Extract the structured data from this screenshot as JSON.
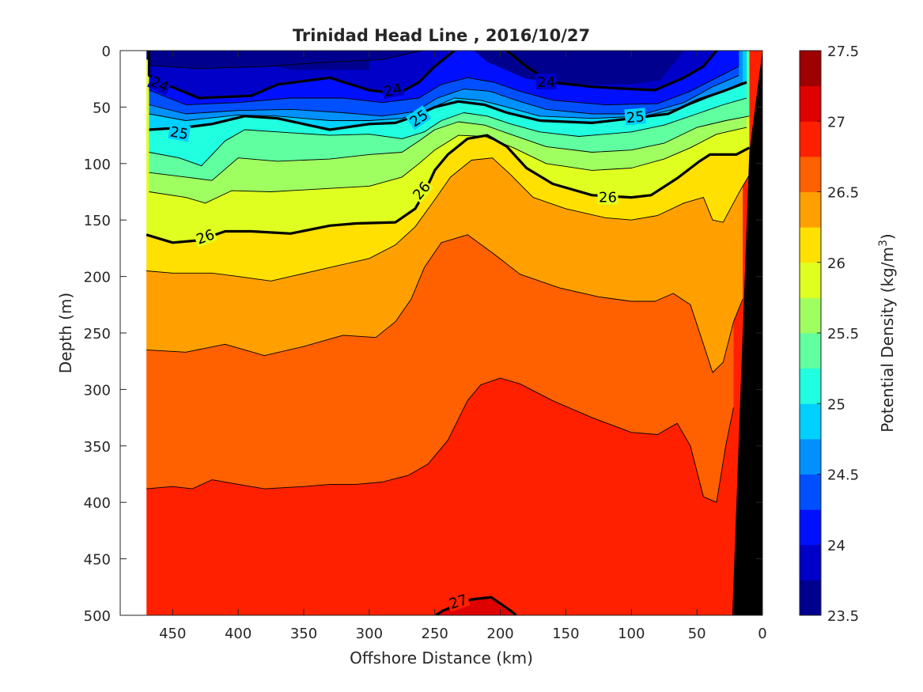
{
  "chart_data": {
    "type": "contour",
    "title": "Trinidad Head Line , 2016/10/27",
    "xlabel": "Offshore Distance (km)",
    "ylabel": "Depth (m)",
    "colorbar_label_main": "Potential Density (kg/m",
    "colorbar_label_sup": "3",
    "colorbar_label_end": ")",
    "xlim": [
      490,
      0
    ],
    "xdir": "reverse",
    "ylim": [
      0,
      500
    ],
    "ydir": "reverse",
    "x_ticks": [
      450,
      400,
      350,
      300,
      250,
      200,
      150,
      100,
      50,
      0
    ],
    "y_ticks": [
      0,
      50,
      100,
      150,
      200,
      250,
      300,
      350,
      400,
      450,
      500
    ],
    "grid": false,
    "colorbar": {
      "range": [
        23.5,
        27.5
      ],
      "step": 0.25,
      "ticks": [
        23.5,
        24,
        24.5,
        25,
        25.5,
        26,
        26.5,
        27,
        27.5
      ],
      "colors": [
        "#00008f",
        "#0000c8",
        "#0010ff",
        "#0050ff",
        "#0090ff",
        "#00d0ff",
        "#20ffdf",
        "#60ff9f",
        "#9fff60",
        "#dfff20",
        "#ffe000",
        "#ffa000",
        "#ff6000",
        "#ff2000",
        "#df0000",
        "#9f0000"
      ]
    },
    "contour_labels": [
      {
        "text": "24",
        "x": 460,
        "y": 30,
        "rotate": 25
      },
      {
        "text": "24",
        "x": 282,
        "y": 35,
        "rotate": -12
      },
      {
        "text": "24",
        "x": 165,
        "y": 28,
        "rotate": 0
      },
      {
        "text": "25",
        "x": 445,
        "y": 73,
        "rotate": 10
      },
      {
        "text": "25",
        "x": 262,
        "y": 60,
        "rotate": -35
      },
      {
        "text": "25",
        "x": 97,
        "y": 59,
        "rotate": -5
      },
      {
        "text": "26",
        "x": 425,
        "y": 165,
        "rotate": -20
      },
      {
        "text": "26",
        "x": 260,
        "y": 124,
        "rotate": -50
      },
      {
        "text": "26",
        "x": 118,
        "y": 130,
        "rotate": 0
      },
      {
        "text": "27",
        "x": 232,
        "y": 488,
        "rotate": -18
      }
    ],
    "isolines": [
      {
        "level": 23.75,
        "points": [
          [
            468,
            0
          ],
          [
            468,
            13
          ],
          [
            430,
            16
          ],
          [
            380,
            14
          ],
          [
            330,
            10
          ],
          [
            290,
            8
          ],
          [
            260,
            0
          ]
        ]
      },
      {
        "level": 24.0,
        "points": [
          [
            468,
            0
          ],
          [
            468,
            22
          ],
          [
            455,
            30
          ],
          [
            430,
            42
          ],
          [
            390,
            40
          ],
          [
            370,
            30
          ],
          [
            330,
            24
          ],
          [
            300,
            35
          ],
          [
            278,
            38
          ],
          [
            262,
            28
          ],
          [
            250,
            14
          ],
          [
            235,
            0
          ]
        ]
      },
      {
        "level": 24.0,
        "points": [
          [
            195,
            0
          ],
          [
            180,
            14
          ],
          [
            162,
            28
          ],
          [
            130,
            32
          ],
          [
            100,
            34
          ],
          [
            82,
            35
          ],
          [
            60,
            24
          ],
          [
            45,
            14
          ],
          [
            35,
            0
          ]
        ]
      },
      {
        "level": 24.25,
        "points": [
          [
            468,
            35
          ],
          [
            440,
            48
          ],
          [
            400,
            46
          ],
          [
            360,
            42
          ],
          [
            320,
            42
          ],
          [
            290,
            46
          ],
          [
            262,
            42
          ],
          [
            245,
            30
          ],
          [
            225,
            24
          ],
          [
            205,
            28
          ],
          [
            185,
            36
          ],
          [
            160,
            44
          ],
          [
            120,
            48
          ],
          [
            80,
            47
          ],
          [
            55,
            36
          ],
          [
            35,
            24
          ],
          [
            18,
            14
          ]
        ]
      },
      {
        "level": 24.5,
        "points": [
          [
            468,
            48
          ],
          [
            440,
            56
          ],
          [
            400,
            53
          ],
          [
            360,
            52
          ],
          [
            320,
            55
          ],
          [
            290,
            58
          ],
          [
            265,
            54
          ],
          [
            248,
            42
          ],
          [
            228,
            34
          ],
          [
            208,
            36
          ],
          [
            188,
            44
          ],
          [
            165,
            52
          ],
          [
            130,
            56
          ],
          [
            90,
            56
          ],
          [
            60,
            46
          ],
          [
            38,
            32
          ],
          [
            18,
            22
          ]
        ]
      },
      {
        "level": 24.75,
        "points": [
          [
            468,
            56
          ],
          [
            440,
            62
          ],
          [
            400,
            57
          ],
          [
            370,
            58
          ],
          [
            330,
            62
          ],
          [
            300,
            62
          ],
          [
            275,
            60
          ],
          [
            255,
            52
          ],
          [
            235,
            42
          ],
          [
            215,
            44
          ],
          [
            195,
            50
          ],
          [
            170,
            58
          ],
          [
            130,
            60
          ],
          [
            90,
            58
          ],
          [
            60,
            50
          ],
          [
            38,
            40
          ],
          [
            15,
            28
          ]
        ]
      },
      {
        "level": 25.0,
        "points": [
          [
            468,
            70
          ],
          [
            440,
            68
          ],
          [
            420,
            65
          ],
          [
            395,
            58
          ],
          [
            370,
            60
          ],
          [
            330,
            70
          ],
          [
            300,
            65
          ],
          [
            280,
            64
          ],
          [
            265,
            58
          ],
          [
            250,
            50
          ],
          [
            232,
            45
          ],
          [
            212,
            48
          ],
          [
            195,
            55
          ],
          [
            170,
            62
          ],
          [
            130,
            64
          ],
          [
            100,
            60
          ],
          [
            72,
            56
          ],
          [
            50,
            44
          ],
          [
            30,
            36
          ],
          [
            12,
            28
          ]
        ]
      },
      {
        "level": 25.25,
        "points": [
          [
            468,
            90
          ],
          [
            445,
            95
          ],
          [
            428,
            102
          ],
          [
            410,
            80
          ],
          [
            395,
            70
          ],
          [
            370,
            72
          ],
          [
            330,
            75
          ],
          [
            300,
            74
          ],
          [
            275,
            78
          ],
          [
            258,
            72
          ],
          [
            245,
            62
          ],
          [
            228,
            55
          ],
          [
            210,
            58
          ],
          [
            192,
            65
          ],
          [
            170,
            72
          ],
          [
            140,
            76
          ],
          [
            100,
            72
          ],
          [
            75,
            66
          ],
          [
            50,
            56
          ],
          [
            30,
            48
          ],
          [
            12,
            42
          ]
        ]
      },
      {
        "level": 25.5,
        "points": [
          [
            468,
            108
          ],
          [
            440,
            112
          ],
          [
            420,
            115
          ],
          [
            400,
            95
          ],
          [
            370,
            98
          ],
          [
            330,
            96
          ],
          [
            300,
            92
          ],
          [
            275,
            90
          ],
          [
            262,
            80
          ],
          [
            250,
            70
          ],
          [
            232,
            63
          ],
          [
            212,
            66
          ],
          [
            190,
            75
          ],
          [
            165,
            85
          ],
          [
            130,
            90
          ],
          [
            100,
            88
          ],
          [
            75,
            82
          ],
          [
            50,
            68
          ],
          [
            28,
            62
          ],
          [
            10,
            58
          ]
        ]
      },
      {
        "level": 25.75,
        "points": [
          [
            468,
            125
          ],
          [
            440,
            130
          ],
          [
            425,
            135
          ],
          [
            405,
            124
          ],
          [
            375,
            125
          ],
          [
            330,
            122
          ],
          [
            300,
            120
          ],
          [
            275,
            112
          ],
          [
            262,
            100
          ],
          [
            250,
            88
          ],
          [
            232,
            75
          ],
          [
            212,
            76
          ],
          [
            190,
            86
          ],
          [
            165,
            100
          ],
          [
            130,
            106
          ],
          [
            100,
            104
          ],
          [
            75,
            96
          ],
          [
            55,
            86
          ],
          [
            35,
            74
          ],
          [
            12,
            68
          ]
        ]
      },
      {
        "level": 26.0,
        "points": [
          [
            470,
            163
          ],
          [
            450,
            170
          ],
          [
            430,
            168
          ],
          [
            410,
            160
          ],
          [
            390,
            160
          ],
          [
            360,
            162
          ],
          [
            330,
            155
          ],
          [
            310,
            153
          ],
          [
            280,
            152
          ],
          [
            265,
            140
          ],
          [
            258,
            126
          ],
          [
            250,
            106
          ],
          [
            240,
            92
          ],
          [
            225,
            78
          ],
          [
            210,
            75
          ],
          [
            195,
            85
          ],
          [
            180,
            104
          ],
          [
            160,
            118
          ],
          [
            130,
            128
          ],
          [
            100,
            130
          ],
          [
            85,
            128
          ],
          [
            65,
            113
          ],
          [
            48,
            98
          ],
          [
            40,
            92
          ],
          [
            20,
            92
          ],
          [
            10,
            86
          ]
        ]
      },
      {
        "level": 26.25,
        "points": [
          [
            470,
            195
          ],
          [
            450,
            197
          ],
          [
            420,
            197
          ],
          [
            400,
            200
          ],
          [
            375,
            204
          ],
          [
            360,
            200
          ],
          [
            330,
            192
          ],
          [
            300,
            184
          ],
          [
            280,
            172
          ],
          [
            265,
            156
          ],
          [
            250,
            132
          ],
          [
            238,
            112
          ],
          [
            222,
            97
          ],
          [
            206,
            95
          ],
          [
            192,
            110
          ],
          [
            175,
            130
          ],
          [
            150,
            140
          ],
          [
            120,
            148
          ],
          [
            100,
            150
          ],
          [
            80,
            146
          ],
          [
            60,
            135
          ],
          [
            45,
            130
          ],
          [
            38,
            150
          ],
          [
            30,
            152
          ],
          [
            18,
            126
          ],
          [
            10,
            110
          ]
        ]
      },
      {
        "level": 26.5,
        "points": [
          [
            470,
            265
          ],
          [
            440,
            267
          ],
          [
            410,
            260
          ],
          [
            380,
            270
          ],
          [
            350,
            262
          ],
          [
            320,
            252
          ],
          [
            295,
            254
          ],
          [
            280,
            240
          ],
          [
            268,
            220
          ],
          [
            258,
            192
          ],
          [
            245,
            170
          ],
          [
            225,
            163
          ],
          [
            205,
            180
          ],
          [
            185,
            198
          ],
          [
            155,
            210
          ],
          [
            125,
            218
          ],
          [
            100,
            222
          ],
          [
            82,
            222
          ],
          [
            68,
            215
          ],
          [
            55,
            225
          ],
          [
            45,
            260
          ],
          [
            38,
            285
          ],
          [
            30,
            276
          ],
          [
            22,
            240
          ],
          [
            15,
            220
          ]
        ]
      },
      {
        "level": 26.75,
        "points": [
          [
            470,
            388
          ],
          [
            450,
            386
          ],
          [
            435,
            388
          ],
          [
            420,
            380
          ],
          [
            400,
            384
          ],
          [
            380,
            388
          ],
          [
            350,
            386
          ],
          [
            330,
            384
          ],
          [
            310,
            384
          ],
          [
            290,
            382
          ],
          [
            270,
            376
          ],
          [
            255,
            366
          ],
          [
            240,
            345
          ],
          [
            225,
            310
          ],
          [
            215,
            296
          ],
          [
            200,
            290
          ],
          [
            185,
            295
          ],
          [
            160,
            310
          ],
          [
            130,
            325
          ],
          [
            100,
            338
          ],
          [
            80,
            340
          ],
          [
            65,
            330
          ],
          [
            55,
            350
          ],
          [
            45,
            395
          ],
          [
            35,
            400
          ],
          [
            28,
            350
          ],
          [
            22,
            316
          ]
        ]
      },
      {
        "level": 27.0,
        "points": [
          [
            249,
            500
          ],
          [
            244,
            496
          ],
          [
            222,
            486
          ],
          [
            207,
            484
          ],
          [
            192,
            496
          ],
          [
            188,
            500
          ]
        ]
      }
    ],
    "bands": [
      {
        "level_index": 0,
        "points": [
          [
            300,
            0
          ],
          [
            300,
            17
          ],
          [
            360,
            17
          ],
          [
            385,
            10
          ],
          [
            420,
            12
          ],
          [
            470,
            8
          ],
          [
            470,
            0
          ]
        ]
      },
      {
        "level_index": 0,
        "points": [
          [
            220,
            0
          ],
          [
            210,
            10
          ],
          [
            180,
            25
          ],
          [
            140,
            30
          ],
          [
            100,
            30
          ],
          [
            78,
            26
          ],
          [
            60,
            0
          ]
        ]
      }
    ],
    "terrain_color": "#000000",
    "terrain": [
      [
        23,
        500
      ],
      [
        10,
        90
      ],
      [
        0,
        0
      ],
      [
        0,
        500
      ]
    ]
  }
}
